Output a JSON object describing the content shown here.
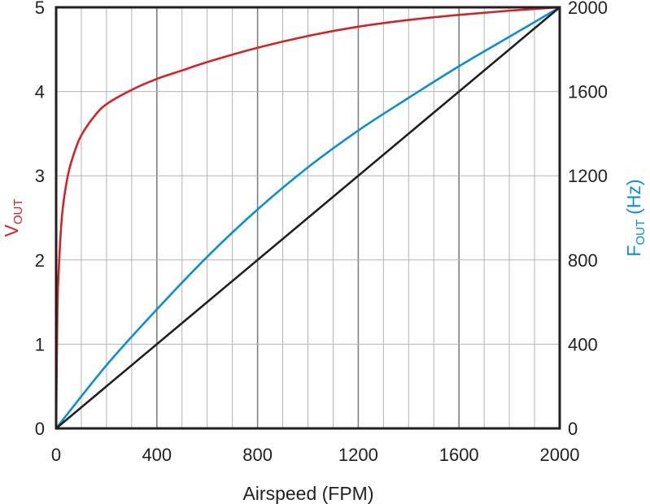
{
  "chart_data": {
    "type": "line",
    "title": "",
    "xlabel": "Airspeed (FPM)",
    "ylabel_left": {
      "main": "V",
      "sub": "OUT",
      "unit": ""
    },
    "ylabel_right": {
      "main": "F",
      "sub": "OUT",
      "unit": "(Hz)"
    },
    "xlim": [
      0,
      2000
    ],
    "ylim_left": [
      0,
      5
    ],
    "ylim_right": [
      0,
      2000
    ],
    "x_ticks": [
      "0",
      "400",
      "800",
      "1200",
      "1600",
      "2000"
    ],
    "y_left_ticks": [
      "0",
      "1",
      "2",
      "3",
      "4",
      "5"
    ],
    "y_right_ticks": [
      "0",
      "400",
      "800",
      "1200",
      "1600",
      "2000"
    ],
    "grid": true,
    "colors": {
      "vout": "#d2232a",
      "fout": "#0b8fce",
      "linear": "#231f20",
      "grid": "#b3b3b3",
      "frame": "#231f20"
    },
    "series": [
      {
        "axis": "left",
        "color": "#d2232a",
        "x": [
          0,
          5,
          10,
          20,
          30,
          50,
          75,
          100,
          150,
          200,
          300,
          400,
          500,
          600,
          800,
          1000,
          1200,
          1400,
          1600,
          1800,
          2000
        ],
        "y": [
          0,
          1.4,
          1.85,
          2.4,
          2.7,
          3.05,
          3.3,
          3.48,
          3.7,
          3.85,
          4.02,
          4.15,
          4.25,
          4.35,
          4.52,
          4.66,
          4.77,
          4.85,
          4.91,
          4.96,
          5.0
        ]
      },
      {
        "axis": "right",
        "color": "#0b8fce",
        "x": [
          0,
          200,
          400,
          600,
          800,
          1000,
          1200,
          1400,
          1600,
          1800,
          2000
        ],
        "y": [
          0,
          300,
          565,
          815,
          1040,
          1240,
          1415,
          1570,
          1720,
          1860,
          2000
        ]
      },
      {
        "axis": "right",
        "color": "#231f20",
        "x": [
          0,
          2000
        ],
        "y": [
          0,
          2000
        ]
      }
    ]
  }
}
